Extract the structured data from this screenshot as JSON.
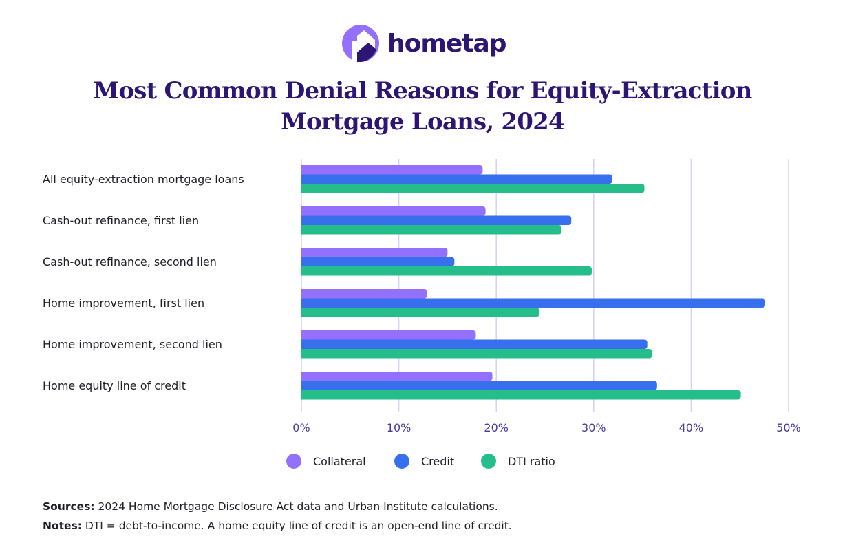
{
  "brand": {
    "name": "hometap"
  },
  "chart_data": {
    "type": "bar",
    "orientation": "horizontal",
    "title": "Most Common Denial Reasons for Equity-Extraction Mortgage Loans, 2024",
    "title_lines": [
      "Most Common Denial Reasons for Equity-Extraction",
      "Mortgage Loans, 2024"
    ],
    "categories": [
      "All equity-extraction mortgage loans",
      "Cash-out refinance, first lien",
      "Cash-out refinance, second lien",
      "Home improvement, first lien",
      "Home improvement, second lien",
      "Home equity line of credit"
    ],
    "series": [
      {
        "name": "Collateral",
        "color": "#9471fd",
        "values": [
          18.6,
          18.9,
          15.0,
          12.9,
          17.9,
          19.6
        ]
      },
      {
        "name": "Credit",
        "color": "#386fec",
        "values": [
          31.9,
          27.7,
          15.7,
          47.6,
          35.5,
          36.5
        ]
      },
      {
        "name": "DTI ratio",
        "color": "#25be8a",
        "values": [
          35.2,
          26.7,
          29.8,
          24.4,
          36.0,
          45.1
        ]
      }
    ],
    "xlim": [
      0,
      50
    ],
    "xticks": [
      "0%",
      "10%",
      "20%",
      "30%",
      "40%",
      "50%"
    ],
    "grid": true,
    "legend": "bottom",
    "xlabel": "",
    "ylabel": ""
  },
  "notes": {
    "sources_label": "Sources:",
    "sources_text": " 2024 Home Mortgage Disclosure Act data and Urban Institute calculations.",
    "notes_label": "Notes:",
    "notes_text": " DTI = debt-to-income. A home equity line of credit is an open-end line of credit."
  }
}
